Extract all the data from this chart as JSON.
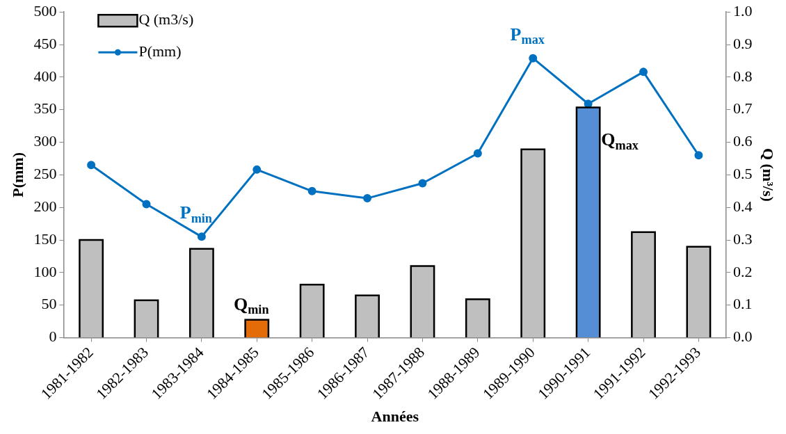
{
  "chart_data": {
    "type": "bar",
    "xlabel": "Années",
    "ylabel": "P(mm)",
    "y2label": "Q (m³/s)",
    "categories": [
      "1981-1982",
      "1982-1983",
      "1983-1984",
      "1984-1985",
      "1985-1986",
      "1986-1987",
      "1987-1988",
      "1988-1989",
      "1989-1990",
      "1990-1991",
      "1991-1992",
      "1992-1993"
    ],
    "series": [
      {
        "name": "Q (m3/s)",
        "type": "bar",
        "axis": "y2",
        "color": "#bfbfbf",
        "colors": [
          "#bfbfbf",
          "#bfbfbf",
          "#bfbfbf",
          "#e36c09",
          "#bfbfbf",
          "#bfbfbf",
          "#bfbfbf",
          "#bfbfbf",
          "#bfbfbf",
          "#558ed5",
          "#bfbfbf",
          "#bfbfbf"
        ],
        "values": [
          0.3,
          0.115,
          0.273,
          0.055,
          0.163,
          0.13,
          0.22,
          0.118,
          0.578,
          0.707,
          0.324,
          0.279
        ]
      },
      {
        "name": "P(mm)",
        "type": "line",
        "axis": "y",
        "color": "#0070c0",
        "marker": "circle",
        "values": [
          265,
          205,
          155,
          258,
          225,
          214,
          237,
          283,
          429,
          359,
          408,
          280
        ]
      }
    ],
    "ylim": [
      0,
      500
    ],
    "yticks": [
      0,
      50,
      100,
      150,
      200,
      250,
      300,
      350,
      400,
      450,
      500
    ],
    "y2lim": [
      0,
      1.0
    ],
    "y2ticks": [
      {
        "value": 0,
        "label": "0.0"
      },
      {
        "value": 0.1,
        "label": "0.1"
      },
      {
        "value": 0.2,
        "label": "0.2"
      },
      {
        "value": 0.3,
        "label": "0.3"
      },
      {
        "value": 0.4,
        "label": "0.4"
      },
      {
        "value": 0.5,
        "label": "0.5"
      },
      {
        "value": 0.6,
        "label": "0.6"
      },
      {
        "value": 0.7,
        "label": "0.7"
      },
      {
        "value": 0.8,
        "label": "0.8"
      },
      {
        "value": 0.9,
        "label": "0.9"
      },
      {
        "value": 1.0,
        "label": "1.0"
      }
    ],
    "annotations": [
      {
        "text": "P$_{min}$",
        "x": "1983-1984",
        "y": 155
      },
      {
        "text": "Q$_{min}$",
        "x": "1984-1985",
        "y": 27.5
      },
      {
        "text": "P$_{max}$",
        "x": "1989-1990",
        "y": 429
      },
      {
        "text": "Q$_{max}$",
        "x": "1990-1991",
        "y": 353.5
      }
    ],
    "grid": false,
    "legend": "top left"
  }
}
